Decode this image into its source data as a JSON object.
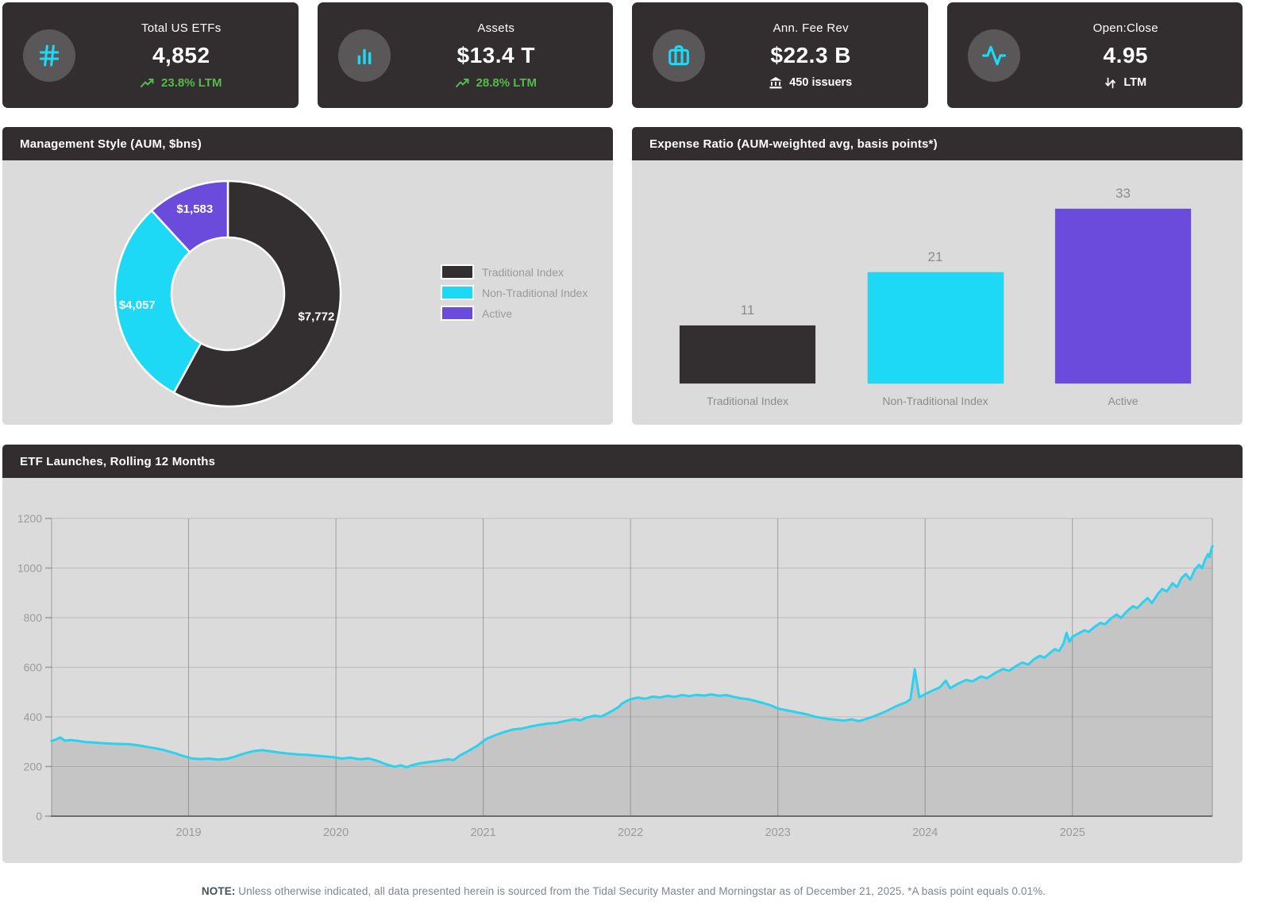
{
  "kpi_cards": [
    {
      "icon": "hash-icon",
      "title": "Total US ETFs",
      "value": "4,852",
      "sub": "23.8% LTM",
      "sub_icon": "trending-up-icon",
      "sub_style": "green"
    },
    {
      "icon": "bar-chart-icon",
      "title": "Assets",
      "value": "$13.4 T",
      "sub": "28.8% LTM",
      "sub_icon": "trending-up-icon",
      "sub_style": "green"
    },
    {
      "icon": "briefcase-icon",
      "title": "Ann. Fee Rev",
      "value": "$22.3 B",
      "sub": "450 issuers",
      "sub_icon": "bank-icon",
      "sub_style": "white"
    },
    {
      "icon": "activity-icon",
      "title": "Open:Close",
      "value": "4.95",
      "sub": "LTM",
      "sub_icon": "up-down-arrows-icon",
      "sub_style": "white"
    }
  ],
  "panels": {
    "management_style": {
      "title": "Management Style (AUM, $bns)"
    },
    "expense_ratio": {
      "title": "Expense Ratio (AUM-weighted avg, basis points*)"
    },
    "etf_launches": {
      "title": "ETF Launches, Rolling 12 Months"
    }
  },
  "colors": {
    "card_bg": "#322E30",
    "icon_circle": "#5A5758",
    "accent_cyan": "#1ED9F5",
    "accent_purple": "#6A4BDC",
    "accent_dark": "#332E30",
    "positive_green": "#56BA4D",
    "panel_body": "#DBDBDB"
  },
  "chart_data": [
    {
      "id": "management_style",
      "type": "pie",
      "donut": true,
      "title": "Management Style (AUM, $bns)",
      "labels": [
        "Traditional Index",
        "Non-Traditional Index",
        "Active"
      ],
      "values": [
        7772,
        4057,
        1583
      ],
      "value_labels": [
        "$7,772",
        "$4,057",
        "$1,583"
      ],
      "colors": [
        "#332E30",
        "#1ED9F5",
        "#6A4BDC"
      ],
      "legend_position": "right"
    },
    {
      "id": "expense_ratio",
      "type": "bar",
      "title": "Expense Ratio (AUM-weighted avg, basis points*)",
      "categories": [
        "Traditional Index",
        "Non-Traditional Index",
        "Active"
      ],
      "values": [
        11,
        21,
        33
      ],
      "colors": [
        "#332E30",
        "#1ED9F5",
        "#6A4BDC"
      ],
      "ylim": [
        0,
        35
      ],
      "grid": false
    },
    {
      "id": "etf_launches",
      "type": "area",
      "title": "ETF Launches, Rolling 12 Months",
      "line_color": "#2BD2F0",
      "fill_color": "#C5C5C5",
      "xlim": [
        2018.07,
        2025.95
      ],
      "ylim": [
        0,
        1200
      ],
      "y_ticks": [
        0,
        200,
        400,
        600,
        800,
        1000,
        1200
      ],
      "x_ticks": [
        2019,
        2020,
        2021,
        2022,
        2023,
        2024,
        2025
      ],
      "grid": true,
      "points": [
        [
          2018.07,
          303
        ],
        [
          2018.1,
          309
        ],
        [
          2018.13,
          317
        ],
        [
          2018.16,
          304
        ],
        [
          2018.2,
          307
        ],
        [
          2018.25,
          303
        ],
        [
          2018.3,
          299
        ],
        [
          2018.36,
          297
        ],
        [
          2018.42,
          294
        ],
        [
          2018.48,
          292
        ],
        [
          2018.54,
          291
        ],
        [
          2018.6,
          290
        ],
        [
          2018.66,
          285
        ],
        [
          2018.72,
          279
        ],
        [
          2018.78,
          273
        ],
        [
          2018.84,
          265
        ],
        [
          2018.9,
          255
        ],
        [
          2018.96,
          243
        ],
        [
          2019.02,
          233
        ],
        [
          2019.08,
          230
        ],
        [
          2019.14,
          232
        ],
        [
          2019.2,
          228
        ],
        [
          2019.26,
          231
        ],
        [
          2019.32,
          241
        ],
        [
          2019.38,
          253
        ],
        [
          2019.44,
          262
        ],
        [
          2019.5,
          266
        ],
        [
          2019.56,
          261
        ],
        [
          2019.62,
          256
        ],
        [
          2019.68,
          252
        ],
        [
          2019.74,
          249
        ],
        [
          2019.8,
          247
        ],
        [
          2019.86,
          244
        ],
        [
          2019.92,
          241
        ],
        [
          2019.98,
          238
        ],
        [
          2020.04,
          232
        ],
        [
          2020.1,
          236
        ],
        [
          2020.16,
          229
        ],
        [
          2020.22,
          233
        ],
        [
          2020.28,
          223
        ],
        [
          2020.34,
          209
        ],
        [
          2020.4,
          199
        ],
        [
          2020.44,
          205
        ],
        [
          2020.48,
          197
        ],
        [
          2020.52,
          206
        ],
        [
          2020.58,
          214
        ],
        [
          2020.64,
          219
        ],
        [
          2020.7,
          223
        ],
        [
          2020.76,
          229
        ],
        [
          2020.8,
          226
        ],
        [
          2020.84,
          244
        ],
        [
          2020.9,
          263
        ],
        [
          2020.96,
          284
        ],
        [
          2021.02,
          311
        ],
        [
          2021.08,
          326
        ],
        [
          2021.14,
          339
        ],
        [
          2021.2,
          349
        ],
        [
          2021.26,
          353
        ],
        [
          2021.32,
          361
        ],
        [
          2021.38,
          368
        ],
        [
          2021.44,
          373
        ],
        [
          2021.5,
          376
        ],
        [
          2021.56,
          384
        ],
        [
          2021.62,
          391
        ],
        [
          2021.66,
          386
        ],
        [
          2021.7,
          397
        ],
        [
          2021.76,
          405
        ],
        [
          2021.8,
          401
        ],
        [
          2021.84,
          413
        ],
        [
          2021.88,
          426
        ],
        [
          2021.92,
          440
        ],
        [
          2021.94,
          453
        ],
        [
          2021.97,
          463
        ],
        [
          2022.0,
          471
        ],
        [
          2022.05,
          478
        ],
        [
          2022.1,
          473
        ],
        [
          2022.15,
          482
        ],
        [
          2022.2,
          478
        ],
        [
          2022.25,
          485
        ],
        [
          2022.3,
          481
        ],
        [
          2022.35,
          488
        ],
        [
          2022.4,
          484
        ],
        [
          2022.45,
          489
        ],
        [
          2022.5,
          486
        ],
        [
          2022.55,
          491
        ],
        [
          2022.6,
          485
        ],
        [
          2022.65,
          488
        ],
        [
          2022.7,
          481
        ],
        [
          2022.75,
          475
        ],
        [
          2022.8,
          471
        ],
        [
          2022.85,
          464
        ],
        [
          2022.9,
          456
        ],
        [
          2022.95,
          447
        ],
        [
          2023.0,
          434
        ],
        [
          2023.05,
          428
        ],
        [
          2023.1,
          422
        ],
        [
          2023.15,
          416
        ],
        [
          2023.2,
          410
        ],
        [
          2023.25,
          401
        ],
        [
          2023.3,
          396
        ],
        [
          2023.35,
          391
        ],
        [
          2023.4,
          388
        ],
        [
          2023.45,
          385
        ],
        [
          2023.5,
          390
        ],
        [
          2023.55,
          383
        ],
        [
          2023.6,
          392
        ],
        [
          2023.65,
          402
        ],
        [
          2023.7,
          414
        ],
        [
          2023.75,
          427
        ],
        [
          2023.79,
          439
        ],
        [
          2023.83,
          450
        ],
        [
          2023.87,
          459
        ],
        [
          2023.9,
          471
        ],
        [
          2023.93,
          592
        ],
        [
          2023.96,
          479
        ],
        [
          2024.0,
          492
        ],
        [
          2024.05,
          506
        ],
        [
          2024.1,
          519
        ],
        [
          2024.14,
          546
        ],
        [
          2024.17,
          516
        ],
        [
          2024.22,
          533
        ],
        [
          2024.28,
          549
        ],
        [
          2024.32,
          543
        ],
        [
          2024.38,
          563
        ],
        [
          2024.42,
          556
        ],
        [
          2024.48,
          579
        ],
        [
          2024.53,
          593
        ],
        [
          2024.57,
          586
        ],
        [
          2024.62,
          606
        ],
        [
          2024.66,
          619
        ],
        [
          2024.7,
          611
        ],
        [
          2024.74,
          633
        ],
        [
          2024.78,
          646
        ],
        [
          2024.81,
          639
        ],
        [
          2024.85,
          659
        ],
        [
          2024.88,
          673
        ],
        [
          2024.91,
          666
        ],
        [
          2024.94,
          696
        ],
        [
          2024.96,
          739
        ],
        [
          2024.98,
          703
        ],
        [
          2025.0,
          723
        ],
        [
          2025.04,
          736
        ],
        [
          2025.08,
          749
        ],
        [
          2025.11,
          743
        ],
        [
          2025.15,
          763
        ],
        [
          2025.19,
          779
        ],
        [
          2025.22,
          773
        ],
        [
          2025.26,
          796
        ],
        [
          2025.3,
          813
        ],
        [
          2025.33,
          799
        ],
        [
          2025.37,
          826
        ],
        [
          2025.41,
          846
        ],
        [
          2025.44,
          839
        ],
        [
          2025.48,
          863
        ],
        [
          2025.51,
          879
        ],
        [
          2025.54,
          859
        ],
        [
          2025.58,
          896
        ],
        [
          2025.61,
          916
        ],
        [
          2025.64,
          906
        ],
        [
          2025.68,
          939
        ],
        [
          2025.71,
          923
        ],
        [
          2025.74,
          959
        ],
        [
          2025.77,
          976
        ],
        [
          2025.8,
          953
        ],
        [
          2025.83,
          993
        ],
        [
          2025.86,
          1013
        ],
        [
          2025.88,
          999
        ],
        [
          2025.9,
          1033
        ],
        [
          2025.92,
          1056
        ],
        [
          2025.93,
          1043
        ],
        [
          2025.94,
          1069
        ],
        [
          2025.95,
          1088
        ]
      ]
    }
  ],
  "note": {
    "label": "NOTE:",
    "text": " Unless otherwise indicated, all data presented herein is sourced from the Tidal Security Master and Morningstar as of December 21, 2025. *A basis point equals 0.01%."
  }
}
